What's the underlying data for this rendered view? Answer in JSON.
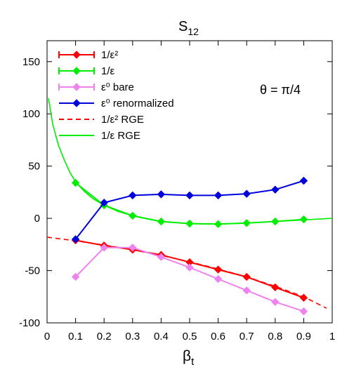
{
  "chart_data": {
    "type": "line",
    "title": "S",
    "title_sub": "12",
    "xlabel": "β",
    "xlabel_sub": "t",
    "ylabel": "",
    "xlim": [
      0,
      1
    ],
    "ylim": [
      -100,
      170
    ],
    "xticks": [
      "0",
      "0.1",
      "0.2",
      "0.3",
      "0.4",
      "0.5",
      "0.6",
      "0.7",
      "0.8",
      "0.9",
      "1"
    ],
    "yticks": [
      "-100",
      "-50",
      "0",
      "50",
      "100",
      "150"
    ],
    "ytick_values": [
      -100,
      -50,
      0,
      50,
      100,
      150
    ],
    "grid": false,
    "legend_position": "top-left",
    "annotation": "θ = π/4",
    "series": [
      {
        "name": "1/ε²",
        "color": "#ff0000",
        "style": "line-diamond-errorbar",
        "x": [
          0.1,
          0.2,
          0.3,
          0.4,
          0.5,
          0.6,
          0.7,
          0.8,
          0.9
        ],
        "y": [
          -21,
          -26,
          -30,
          -35,
          -42,
          -49,
          -56,
          -66,
          -76
        ]
      },
      {
        "name": "1/ε",
        "color": "#00ee00",
        "style": "line-diamond-errorbar",
        "x": [
          0.1,
          0.2,
          0.3,
          0.4,
          0.5,
          0.6,
          0.7,
          0.8,
          0.9
        ],
        "y": [
          34,
          12.5,
          2.5,
          -3,
          -5,
          -5.5,
          -4.5,
          -3,
          -1
        ]
      },
      {
        "name": "ε⁰ bare",
        "color": "#ee82ee",
        "style": "line-diamond-errorbar",
        "x": [
          0.1,
          0.2,
          0.3,
          0.4,
          0.5,
          0.6,
          0.7,
          0.8,
          0.9
        ],
        "y": [
          -56,
          -28,
          -28,
          -37,
          -47,
          -58,
          -69,
          -80,
          -89
        ]
      },
      {
        "name": "ε⁰ renormalized",
        "color": "#0000dd",
        "style": "line-diamond",
        "x": [
          0.1,
          0.2,
          0.3,
          0.4,
          0.5,
          0.6,
          0.7,
          0.8,
          0.9
        ],
        "y": [
          -20,
          15,
          22,
          23,
          22,
          22,
          23.5,
          27.5,
          36
        ]
      },
      {
        "name": "1/ε² RGE",
        "color": "#ff0000",
        "style": "dashed",
        "x": [
          0.0,
          0.1,
          0.2,
          0.3,
          0.4,
          0.5,
          0.6,
          0.7,
          0.8,
          0.9,
          0.98
        ],
        "y": [
          -18,
          -21.5,
          -25.5,
          -30,
          -35.5,
          -41.5,
          -48.5,
          -56,
          -65,
          -75,
          -86
        ]
      },
      {
        "name": "1/ε RGE",
        "color": "#00ee00",
        "style": "solid",
        "x": [
          0.005,
          0.02,
          0.04,
          0.06,
          0.08,
          0.1,
          0.13,
          0.16,
          0.2,
          0.25,
          0.3,
          0.35,
          0.4,
          0.5,
          0.6,
          0.7,
          0.8,
          0.9,
          1.0
        ],
        "y": [
          115,
          90,
          70,
          56,
          44,
          35,
          26,
          19,
          12.5,
          6.5,
          2.5,
          -0.5,
          -3,
          -5,
          -5.5,
          -4.5,
          -3,
          -1.5,
          0
        ]
      }
    ]
  }
}
